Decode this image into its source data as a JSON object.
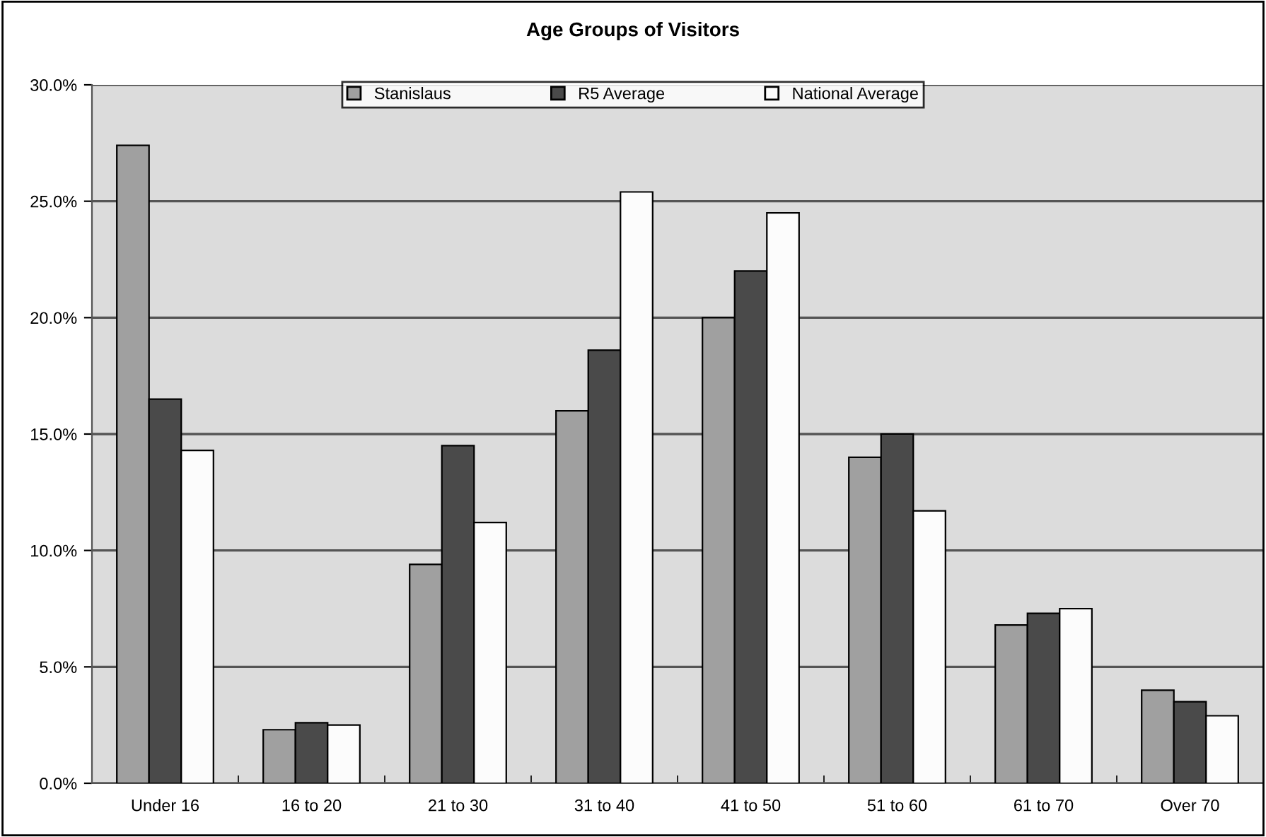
{
  "chart_data": {
    "type": "bar",
    "title": "Age Groups of Visitors",
    "categories": [
      "Under 16",
      "16 to 20",
      "21 to 30",
      "31 to 40",
      "41 to 50",
      "51 to 60",
      "61 to 70",
      "Over 70"
    ],
    "series": [
      {
        "name": "Stanislaus",
        "color": "#a0a0a0",
        "values": [
          27.4,
          2.3,
          9.4,
          16.0,
          20.0,
          14.0,
          6.8,
          4.0
        ]
      },
      {
        "name": "R5 Average",
        "color": "#4a4a4a",
        "values": [
          16.5,
          2.6,
          14.5,
          18.6,
          22.0,
          15.0,
          7.3,
          3.5
        ]
      },
      {
        "name": "National Average",
        "color": "#fcfcfc",
        "values": [
          14.3,
          2.5,
          11.2,
          25.4,
          24.5,
          11.7,
          7.5,
          2.9
        ]
      }
    ],
    "ylim": [
      0,
      30
    ],
    "yticks": [
      {
        "value": 0,
        "label": "0.0%"
      },
      {
        "value": 5,
        "label": "5.0%"
      },
      {
        "value": 10,
        "label": "10.0%"
      },
      {
        "value": 15,
        "label": "15.0%"
      },
      {
        "value": 20,
        "label": "20.0%"
      },
      {
        "value": 25,
        "label": "25.0%"
      },
      {
        "value": 30,
        "label": "30.0%"
      }
    ],
    "grid": "y",
    "legend": "top"
  }
}
